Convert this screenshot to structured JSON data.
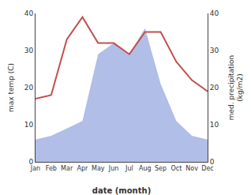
{
  "chart_data": {
    "type": "line",
    "categories": [
      "Jan",
      "Feb",
      "Mar",
      "Apr",
      "May",
      "Jun",
      "Jul",
      "Aug",
      "Sep",
      "Oct",
      "Nov",
      "Dec"
    ],
    "series": [
      {
        "type": "area",
        "color": "#b0bee8",
        "values": [
          6,
          7,
          9,
          11,
          29,
          32,
          29,
          36,
          21,
          11,
          7,
          6
        ]
      },
      {
        "type": "line",
        "color": "#c0504d",
        "values": [
          17,
          18,
          33,
          39,
          32,
          32,
          29,
          35,
          35,
          27,
          22,
          19
        ]
      }
    ],
    "xlabel": "date (month)",
    "ylabel": "max temp (C)",
    "y2label": "med. precipitation\n(kg/m2)",
    "ylim": [
      0,
      40
    ],
    "yticks": [
      0,
      10,
      20,
      30,
      40
    ],
    "y2lim": [
      0,
      40
    ],
    "y2ticks": [
      0,
      10,
      20,
      30,
      40
    ],
    "grid": false
  }
}
